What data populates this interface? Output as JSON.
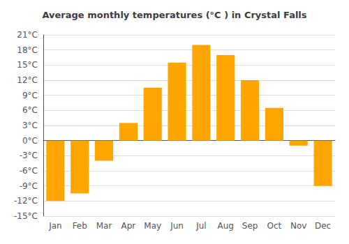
{
  "chart_data": {
    "type": "bar",
    "title": "Average monthly temperatures (°C ) in Crystal Falls",
    "categories": [
      "Jan",
      "Feb",
      "Mar",
      "Apr",
      "May",
      "Jun",
      "Jul",
      "Aug",
      "Sep",
      "Oct",
      "Nov",
      "Dec"
    ],
    "values": [
      -12,
      -10.5,
      -4,
      3.5,
      10.5,
      15.5,
      19,
      17,
      12,
      6.5,
      -1,
      -9
    ],
    "color": "#FFA500",
    "ylim": [
      -15,
      21
    ],
    "yticks": [
      {
        "value": -15,
        "label": "-15°C"
      },
      {
        "value": -12,
        "label": "-12°C"
      },
      {
        "value": -9,
        "label": "-9°C"
      },
      {
        "value": -6,
        "label": "-6°C"
      },
      {
        "value": -3,
        "label": "-3°C"
      },
      {
        "value": 0,
        "label": "0°C"
      },
      {
        "value": 3,
        "label": "3°C"
      },
      {
        "value": 6,
        "label": "6°C"
      },
      {
        "value": 9,
        "label": "9°C"
      },
      {
        "value": 12,
        "label": "12°C"
      },
      {
        "value": 15,
        "label": "15°C"
      },
      {
        "value": 18,
        "label": "18°C"
      },
      {
        "value": 21,
        "label": "21°C"
      }
    ],
    "grid": true
  }
}
